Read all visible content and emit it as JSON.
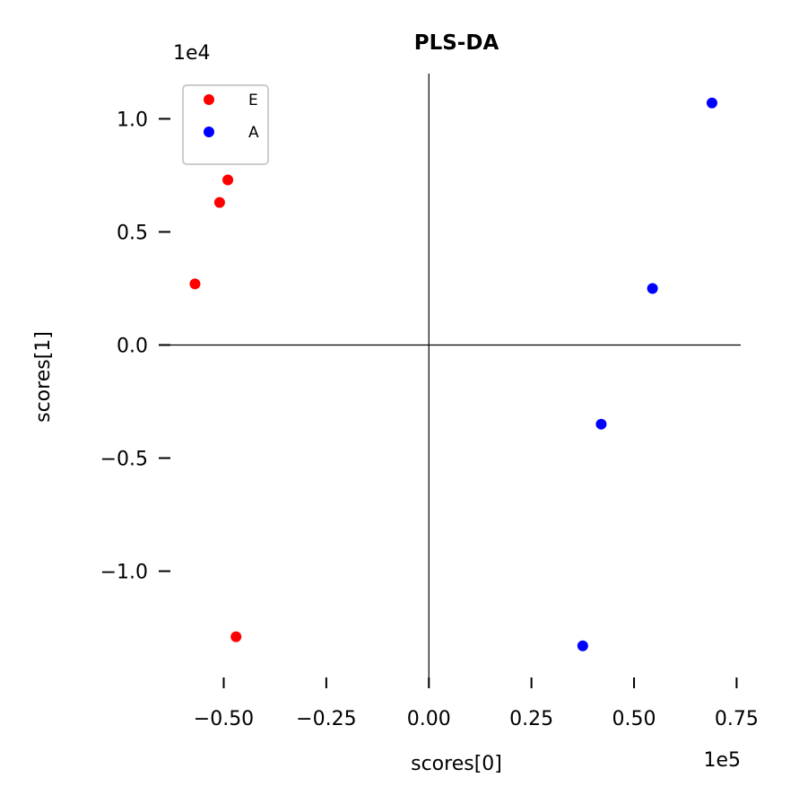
{
  "chart_data": {
    "type": "scatter",
    "title": "PLS-DA",
    "xlabel": "scores[0]",
    "ylabel": "scores[1]",
    "x_offset_label": "1e5",
    "y_offset_label": "1e4",
    "xlim": [
      -0.63,
      0.76
    ],
    "ylim": [
      -1.47,
      1.2
    ],
    "x_ticks": [
      -0.5,
      -0.25,
      0.0,
      0.25,
      0.5,
      0.75
    ],
    "x_tick_labels": [
      "−0.50",
      "−0.25",
      "0.00",
      "0.25",
      "0.50",
      "0.75"
    ],
    "y_ticks": [
      1.0,
      0.5,
      0.0,
      -0.5,
      -1.0
    ],
    "y_tick_labels": [
      "1.0",
      "0.5",
      "0.0",
      "−0.5",
      "−1.0"
    ],
    "grid": false,
    "origin_lines": true,
    "legend_position": "top-left",
    "series": [
      {
        "name": "E",
        "color": "#ff0000",
        "points": [
          [
            -0.49,
            0.73
          ],
          [
            -0.51,
            0.63
          ],
          [
            -0.57,
            0.27
          ],
          [
            -0.47,
            -1.29
          ]
        ]
      },
      {
        "name": "A",
        "color": "#0000ff",
        "points": [
          [
            0.69,
            1.07
          ],
          [
            0.545,
            0.25
          ],
          [
            0.42,
            -0.35
          ],
          [
            0.375,
            -1.33
          ]
        ]
      }
    ]
  }
}
